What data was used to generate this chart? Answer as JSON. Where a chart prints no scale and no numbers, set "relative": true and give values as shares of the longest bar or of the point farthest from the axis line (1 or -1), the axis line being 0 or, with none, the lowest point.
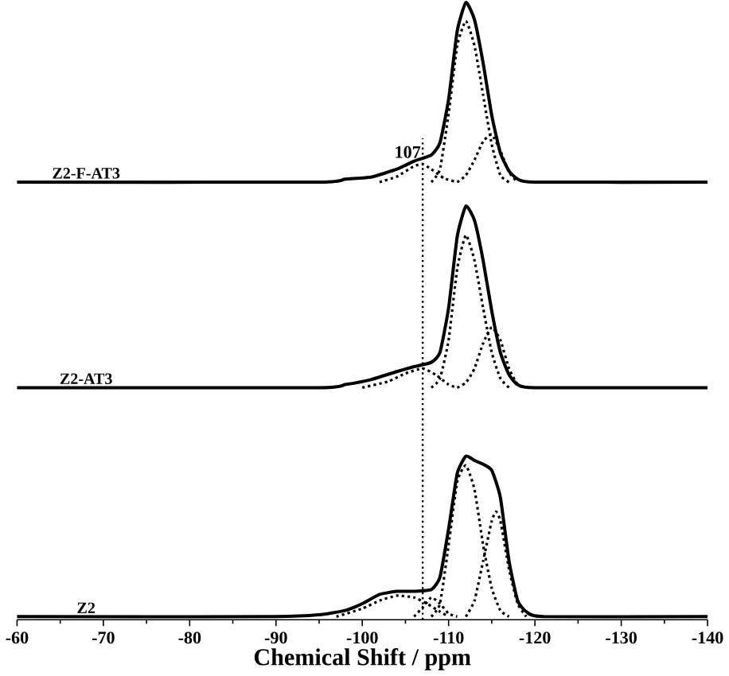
{
  "chart_data": {
    "type": "line",
    "xlabel": "Chemical Shift / ppm",
    "relative": true,
    "xlim": [
      -60,
      -140
    ],
    "xticks": [
      -60,
      -70,
      -80,
      -90,
      -100,
      -110,
      -120,
      -130,
      -140
    ],
    "grid": false,
    "marker": "none",
    "annotations": [
      {
        "text": "107",
        "x": -107,
        "y": 0.745
      }
    ],
    "ref_lines": [
      {
        "axis": "x",
        "value": -107,
        "color": "#000000",
        "line_style": "dotted"
      }
    ],
    "series": [
      {
        "name": "Z2-F-AT3",
        "color": "#000000",
        "line_style": "solid",
        "x": [
          -60,
          -95,
          -98,
          -101,
          -104,
          -106,
          -108,
          -109,
          -110,
          -111,
          -112,
          -113,
          -114,
          -115,
          -116,
          -117,
          -118,
          -120,
          -140
        ],
        "values": [
          0.709,
          0.709,
          0.714,
          0.717,
          0.73,
          0.743,
          0.753,
          0.773,
          0.843,
          0.954,
          1.0,
          0.972,
          0.902,
          0.817,
          0.756,
          0.727,
          0.714,
          0.709,
          0.709
        ]
      },
      {
        "color": "#000000",
        "line_style": "dotted",
        "x": [
          -108,
          -109,
          -110,
          -111,
          -112,
          -113,
          -114,
          -115,
          -116,
          -117
        ],
        "values": [
          0.709,
          0.73,
          0.82,
          0.93,
          0.97,
          0.93,
          0.85,
          0.77,
          0.72,
          0.709
        ]
      },
      {
        "color": "#000000",
        "line_style": "dotted",
        "x": [
          -111,
          -112,
          -113,
          -114,
          -115,
          -116,
          -117,
          -118
        ],
        "values": [
          0.709,
          0.72,
          0.745,
          0.775,
          0.786,
          0.76,
          0.725,
          0.709
        ]
      },
      {
        "color": "#000000",
        "line_style": "dotted",
        "x": [
          -102,
          -104,
          -106,
          -107,
          -108,
          -109.5,
          -111
        ],
        "values": [
          0.709,
          0.718,
          0.735,
          0.738,
          0.73,
          0.715,
          0.709
        ]
      },
      {
        "name": "Z2-AT3",
        "color": "#000000",
        "line_style": "solid",
        "x": [
          -60,
          -95,
          -98,
          -101,
          -104,
          -106,
          -108,
          -109,
          -110,
          -111,
          -112,
          -113,
          -114,
          -115,
          -116,
          -117,
          -118,
          -120,
          -140
        ],
        "values": [
          0.376,
          0.376,
          0.381,
          0.389,
          0.402,
          0.41,
          0.417,
          0.433,
          0.505,
          0.621,
          0.67,
          0.647,
          0.582,
          0.5,
          0.433,
          0.397,
          0.381,
          0.376,
          0.376
        ]
      },
      {
        "color": "#000000",
        "line_style": "dotted",
        "x": [
          -108,
          -109,
          -110,
          -111,
          -112,
          -113,
          -114,
          -115,
          -116,
          -117
        ],
        "values": [
          0.376,
          0.391,
          0.453,
          0.569,
          0.623,
          0.582,
          0.505,
          0.433,
          0.391,
          0.376
        ]
      },
      {
        "color": "#000000",
        "line_style": "dotted",
        "x": [
          -111,
          -112,
          -113,
          -114,
          -115,
          -116,
          -117,
          -118,
          -119
        ],
        "values": [
          0.376,
          0.384,
          0.407,
          0.448,
          0.474,
          0.453,
          0.407,
          0.381,
          0.376
        ]
      },
      {
        "color": "#000000",
        "line_style": "dotted",
        "x": [
          -100,
          -103,
          -105,
          -107,
          -108.5,
          -110,
          -111
        ],
        "values": [
          0.376,
          0.386,
          0.399,
          0.407,
          0.397,
          0.381,
          0.376
        ]
      },
      {
        "name": "Z2",
        "color": "#000000",
        "line_style": "solid",
        "x": [
          -60,
          -90,
          -95,
          -98,
          -100,
          -102,
          -104,
          -106,
          -108,
          -109,
          -110,
          -111,
          -112,
          -113,
          -114,
          -115,
          -116,
          -117,
          -118,
          -119,
          -121,
          -140
        ],
        "values": [
          0.005,
          0.005,
          0.008,
          0.015,
          0.026,
          0.041,
          0.046,
          0.046,
          0.049,
          0.069,
          0.147,
          0.237,
          0.265,
          0.258,
          0.252,
          0.242,
          0.198,
          0.095,
          0.031,
          0.013,
          0.005,
          0.005
        ]
      },
      {
        "color": "#000000",
        "line_style": "dotted",
        "x": [
          -108,
          -109,
          -110,
          -111,
          -112,
          -113,
          -114,
          -115,
          -116,
          -117
        ],
        "values": [
          0.005,
          0.026,
          0.121,
          0.224,
          0.25,
          0.211,
          0.121,
          0.051,
          0.015,
          0.005
        ]
      },
      {
        "color": "#000000",
        "line_style": "dotted",
        "x": [
          -112,
          -113,
          -114,
          -115,
          -115.5,
          -116,
          -117,
          -118,
          -119
        ],
        "values": [
          0.005,
          0.031,
          0.095,
          0.16,
          0.175,
          0.16,
          0.082,
          0.026,
          0.005
        ]
      },
      {
        "color": "#000000",
        "line_style": "dotted",
        "x": [
          -97,
          -100,
          -102,
          -104,
          -106,
          -107.5,
          -109,
          -110
        ],
        "values": [
          0.005,
          0.018,
          0.031,
          0.039,
          0.036,
          0.026,
          0.013,
          0.005
        ]
      },
      {
        "color": "#000000",
        "line_style": "dotted",
        "x": [
          -106,
          -107,
          -108,
          -109,
          -110,
          -111
        ],
        "values": [
          0.005,
          0.02,
          0.036,
          0.026,
          0.01,
          0.005
        ]
      }
    ]
  }
}
